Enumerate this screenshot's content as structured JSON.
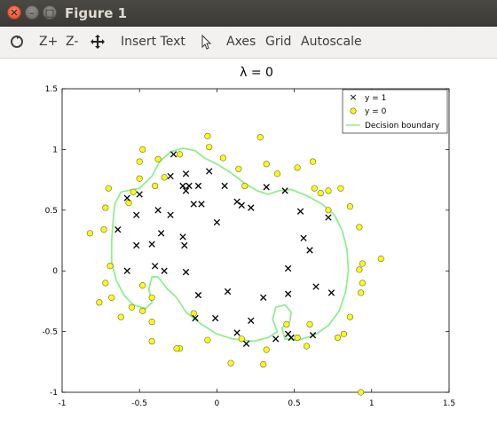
{
  "window": {
    "title": "Figure 1"
  },
  "toolbar": {
    "zoom_in": "Z+",
    "zoom_out": "Z-",
    "insert_text": "Insert Text",
    "axes": "Axes",
    "grid": "Grid",
    "autoscale": "Autoscale",
    "icons": [
      "rotate-icon",
      "pan-icon",
      "pointer-icon"
    ]
  },
  "colors": {
    "positive_marker": "#000000",
    "negative_marker": "#ffff00",
    "boundary": "#90ee90"
  },
  "chart_data": {
    "type": "scatter",
    "title": "λ = 0",
    "xlim": [
      -1,
      1.5
    ],
    "ylim": [
      -1,
      1.5
    ],
    "xticks": [
      "-1",
      "-0.5",
      "0",
      "0.5",
      "1",
      "1.5"
    ],
    "yticks": [
      "-1",
      "-0.5",
      "0",
      "0.5",
      "1",
      "1.5"
    ],
    "grid": false,
    "legend": {
      "placement": "top-right",
      "entries": [
        "y = 1",
        "y = 0",
        "Decision boundary"
      ]
    },
    "series": [
      {
        "name": "y = 1",
        "marker": "x",
        "points": [
          [
            -0.28,
            0.96
          ],
          [
            -0.3,
            0.78
          ],
          [
            -0.2,
            0.8
          ],
          [
            -0.22,
            0.7
          ],
          [
            -0.18,
            0.7
          ],
          [
            -0.2,
            0.66
          ],
          [
            -0.12,
            0.7
          ],
          [
            -0.05,
            0.82
          ],
          [
            0.05,
            0.7
          ],
          [
            -0.58,
            0.6
          ],
          [
            -0.5,
            0.63
          ],
          [
            -0.52,
            0.46
          ],
          [
            -0.38,
            0.5
          ],
          [
            -0.3,
            0.46
          ],
          [
            -0.15,
            0.55
          ],
          [
            -0.1,
            0.55
          ],
          [
            0.0,
            0.4
          ],
          [
            0.13,
            0.57
          ],
          [
            0.16,
            0.54
          ],
          [
            0.22,
            0.52
          ],
          [
            0.32,
            0.69
          ],
          [
            0.44,
            0.66
          ],
          [
            0.54,
            0.49
          ],
          [
            0.56,
            0.27
          ],
          [
            0.6,
            0.17
          ],
          [
            0.72,
            0.44
          ],
          [
            -0.64,
            0.34
          ],
          [
            -0.52,
            0.21
          ],
          [
            -0.42,
            0.22
          ],
          [
            -0.36,
            0.31
          ],
          [
            -0.22,
            0.28
          ],
          [
            -0.21,
            0.21
          ],
          [
            -0.4,
            0.04
          ],
          [
            -0.34,
            0.0
          ],
          [
            -0.2,
            -0.01
          ],
          [
            -0.58,
            0.0
          ],
          [
            -0.12,
            -0.2
          ],
          [
            0.07,
            -0.17
          ],
          [
            0.3,
            -0.22
          ],
          [
            0.46,
            0.02
          ],
          [
            0.46,
            -0.19
          ],
          [
            0.64,
            -0.13
          ],
          [
            0.74,
            -0.18
          ],
          [
            -0.14,
            -0.39
          ],
          [
            -0.01,
            -0.39
          ],
          [
            0.22,
            -0.41
          ],
          [
            0.13,
            -0.51
          ],
          [
            0.19,
            -0.6
          ],
          [
            0.38,
            -0.56
          ],
          [
            0.46,
            -0.52
          ],
          [
            0.48,
            -0.55
          ],
          [
            0.62,
            -0.53
          ]
        ]
      },
      {
        "name": "y = 0",
        "marker": "o",
        "points": [
          [
            -0.82,
            0.31
          ],
          [
            -0.73,
            0.34
          ],
          [
            -0.72,
            0.52
          ],
          [
            -0.7,
            0.68
          ],
          [
            -0.57,
            0.56
          ],
          [
            -0.54,
            0.65
          ],
          [
            -0.5,
            0.9
          ],
          [
            -0.48,
            1.0
          ],
          [
            -0.38,
            0.92
          ],
          [
            -0.4,
            0.7
          ],
          [
            -0.5,
            0.76
          ],
          [
            -0.34,
            0.77
          ],
          [
            -0.24,
            0.96
          ],
          [
            -0.05,
            1.02
          ],
          [
            -0.06,
            1.11
          ],
          [
            0.04,
            0.93
          ],
          [
            0.14,
            0.84
          ],
          [
            0.18,
            0.7
          ],
          [
            0.28,
            1.1
          ],
          [
            0.32,
            0.88
          ],
          [
            0.39,
            0.8
          ],
          [
            0.52,
            0.85
          ],
          [
            0.62,
            0.9
          ],
          [
            0.63,
            0.68
          ],
          [
            0.67,
            0.64
          ],
          [
            0.72,
            0.66
          ],
          [
            0.8,
            0.68
          ],
          [
            0.72,
            0.5
          ],
          [
            0.86,
            0.53
          ],
          [
            0.92,
            0.36
          ],
          [
            0.94,
            0.06
          ],
          [
            0.92,
            0.01
          ],
          [
            0.94,
            -0.1
          ],
          [
            0.93,
            -0.18
          ],
          [
            1.06,
            0.1
          ],
          [
            -0.69,
            0.04
          ],
          [
            -0.72,
            -0.1
          ],
          [
            -0.68,
            -0.22
          ],
          [
            -0.76,
            -0.26
          ],
          [
            -0.62,
            -0.38
          ],
          [
            -0.55,
            -0.3
          ],
          [
            -0.48,
            -0.12
          ],
          [
            -0.42,
            -0.22
          ],
          [
            -0.48,
            -0.33
          ],
          [
            -0.42,
            -0.42
          ],
          [
            -0.42,
            -0.58
          ],
          [
            -0.24,
            -0.64
          ],
          [
            -0.15,
            -0.35
          ],
          [
            -0.06,
            -0.57
          ],
          [
            0.09,
            -0.76
          ],
          [
            0.16,
            -0.56
          ],
          [
            0.32,
            -0.65
          ],
          [
            0.3,
            -0.77
          ],
          [
            0.45,
            -0.44
          ],
          [
            0.52,
            -0.55
          ],
          [
            0.58,
            -0.62
          ],
          [
            0.6,
            -0.44
          ],
          [
            0.78,
            -0.55
          ],
          [
            0.82,
            -0.52
          ],
          [
            0.86,
            -0.38
          ],
          [
            0.93,
            -1.0
          ],
          [
            -0.26,
            -0.64
          ]
        ]
      }
    ],
    "boundary": [
      [
        -0.62,
        0.65
      ],
      [
        -0.5,
        0.68
      ],
      [
        -0.42,
        0.78
      ],
      [
        -0.37,
        0.9
      ],
      [
        -0.3,
        0.98
      ],
      [
        -0.22,
        1.01
      ],
      [
        -0.14,
        0.99
      ],
      [
        -0.08,
        0.93
      ],
      [
        0.0,
        0.88
      ],
      [
        0.1,
        0.8
      ],
      [
        0.18,
        0.72
      ],
      [
        0.26,
        0.66
      ],
      [
        0.33,
        0.63
      ],
      [
        0.4,
        0.66
      ],
      [
        0.48,
        0.67
      ],
      [
        0.58,
        0.62
      ],
      [
        0.68,
        0.55
      ],
      [
        0.76,
        0.46
      ],
      [
        0.81,
        0.33
      ],
      [
        0.84,
        0.18
      ],
      [
        0.85,
        0.0
      ],
      [
        0.83,
        -0.18
      ],
      [
        0.79,
        -0.33
      ],
      [
        0.72,
        -0.45
      ],
      [
        0.63,
        -0.53
      ],
      [
        0.52,
        -0.57
      ],
      [
        0.44,
        -0.56
      ],
      [
        0.42,
        -0.47
      ],
      [
        0.47,
        -0.42
      ],
      [
        0.48,
        -0.34
      ],
      [
        0.44,
        -0.28
      ],
      [
        0.38,
        -0.3
      ],
      [
        0.36,
        -0.4
      ],
      [
        0.39,
        -0.5
      ],
      [
        0.33,
        -0.55
      ],
      [
        0.24,
        -0.58
      ],
      [
        0.1,
        -0.56
      ],
      [
        0.0,
        -0.52
      ],
      [
        -0.1,
        -0.44
      ],
      [
        -0.2,
        -0.34
      ],
      [
        -0.26,
        -0.22
      ],
      [
        -0.32,
        -0.15
      ],
      [
        -0.38,
        -0.05
      ],
      [
        -0.42,
        -0.05
      ],
      [
        -0.44,
        -0.15
      ],
      [
        -0.42,
        -0.26
      ],
      [
        -0.46,
        -0.31
      ],
      [
        -0.54,
        -0.28
      ],
      [
        -0.6,
        -0.2
      ],
      [
        -0.65,
        -0.08
      ],
      [
        -0.68,
        0.08
      ],
      [
        -0.68,
        0.25
      ],
      [
        -0.67,
        0.42
      ],
      [
        -0.66,
        0.55
      ],
      [
        -0.62,
        0.65
      ]
    ]
  }
}
